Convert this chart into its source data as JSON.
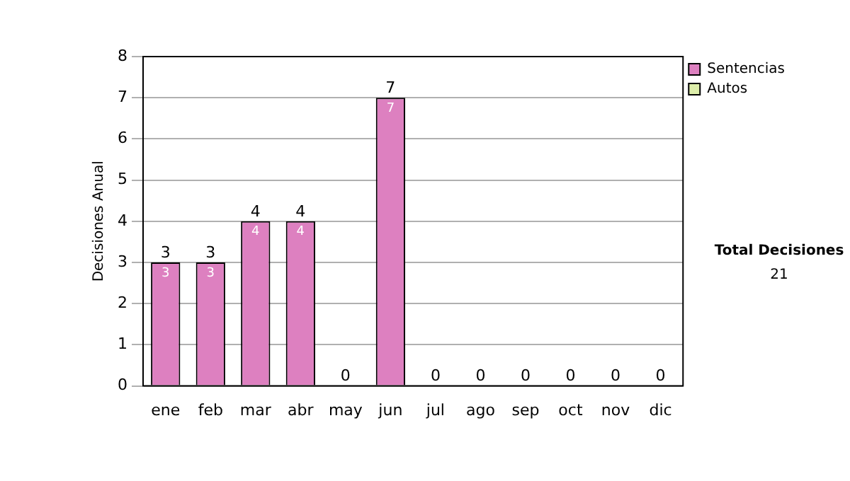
{
  "chart_data": {
    "type": "bar",
    "ylabel": "Decisiones Anual",
    "categories": [
      "ene",
      "feb",
      "mar",
      "abr",
      "may",
      "jun",
      "jul",
      "ago",
      "sep",
      "oct",
      "nov",
      "dic"
    ],
    "stacked": true,
    "series": [
      {
        "name": "Sentencias",
        "color": "#dd80c0",
        "values": [
          3,
          3,
          4,
          4,
          0,
          7,
          0,
          0,
          0,
          0,
          0,
          0
        ],
        "value_labels": [
          "3",
          "3",
          "4",
          "4",
          null,
          "7",
          null,
          null,
          null,
          null,
          null,
          null
        ]
      },
      {
        "name": "Autos",
        "color": "#ddeeaa",
        "values": [
          0,
          0,
          0,
          0,
          0,
          0,
          0,
          0,
          0,
          0,
          0,
          0
        ]
      }
    ],
    "totals": [
      "3",
      "3",
      "4",
      "4",
      "0",
      "7",
      "0",
      "0",
      "0",
      "0",
      "0",
      "0"
    ],
    "ylim": [
      0,
      8
    ],
    "yticks": [
      0,
      1,
      2,
      3,
      4,
      5,
      6,
      7,
      8
    ],
    "grid": "y",
    "legend": "right",
    "annotations": [
      "Total Decisiones",
      "21"
    ]
  }
}
